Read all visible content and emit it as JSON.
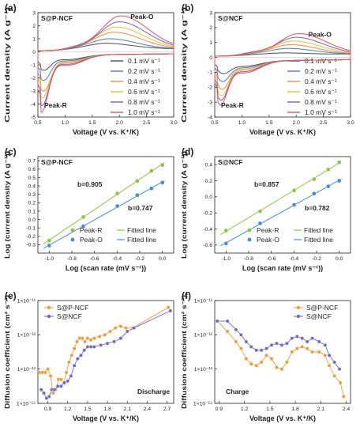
{
  "chart_data": [
    {
      "panel": "(a)",
      "type": "line",
      "title": "S@P-NCF",
      "xlabel": "Voltage (V vs. K⁺/K)",
      "ylabel": "Current density (A g⁻¹)",
      "xlim": [
        0.5,
        3.0
      ],
      "ylim": [
        -5,
        3
      ],
      "xticks": [
        "0.5",
        "1.0",
        "1.5",
        "2.0",
        "2.5",
        "3.0"
      ],
      "yticks": [
        "-5",
        "-4",
        "-3",
        "-2",
        "-1",
        "0",
        "1",
        "2",
        "3"
      ],
      "annotations": [
        "Peak-O",
        "Peak-R"
      ],
      "legend_position": "right",
      "series": [
        {
          "name": "0.1 mV s⁻¹",
          "color": "#4d4d4d",
          "peak_o": [
            1.76,
            0.65
          ],
          "peak_r": [
            0.6,
            -1.25
          ]
        },
        {
          "name": "0.2 mV s⁻¹",
          "color": "#3f7fc4",
          "peak_o": [
            1.82,
            1.0
          ],
          "peak_r": [
            0.6,
            -2.0
          ]
        },
        {
          "name": "0.4 mV s⁻¹",
          "color": "#f08a3c",
          "peak_o": [
            1.9,
            1.5
          ],
          "peak_r": [
            0.6,
            -2.8
          ]
        },
        {
          "name": "0.6 mV s⁻¹",
          "color": "#f0c020",
          "peak_o": [
            1.95,
            1.9
          ],
          "peak_r": [
            0.58,
            -3.3
          ]
        },
        {
          "name": "0.8 mV s⁻¹",
          "color": "#7a5cc8",
          "peak_o": [
            2.0,
            2.3
          ],
          "peak_r": [
            0.57,
            -3.9
          ]
        },
        {
          "name": "1.0 mV s⁻¹",
          "color": "#e8505a",
          "peak_o": [
            2.03,
            2.75
          ],
          "peak_r": [
            0.56,
            -4.4
          ]
        }
      ]
    },
    {
      "panel": "(b)",
      "type": "line",
      "title": "S@NCF",
      "xlabel": "Voltage (V vs. K⁺/K)",
      "ylabel": "Current density (A g⁻¹)",
      "xlim": [
        0.5,
        3.0
      ],
      "ylim": [
        -4,
        3
      ],
      "xticks": [
        "0.5",
        "1.0",
        "1.5",
        "2.0",
        "2.5",
        "3.0"
      ],
      "yticks": [
        "-4",
        "-3",
        "-2",
        "-1",
        "0",
        "1",
        "2",
        "3"
      ],
      "annotations": [
        "Peak-O",
        "Peak-R"
      ],
      "legend_position": "right",
      "series": [
        {
          "name": "0.1 mV s⁻¹",
          "color": "#4d4d4d",
          "peak_o": [
            1.8,
            0.3
          ],
          "peak_r": [
            0.65,
            -0.9
          ]
        },
        {
          "name": "0.2 mV s⁻¹",
          "color": "#3f7fc4",
          "peak_o": [
            1.85,
            0.6
          ],
          "peak_r": [
            0.64,
            -1.4
          ]
        },
        {
          "name": "0.4 mV s⁻¹",
          "color": "#f08a3c",
          "peak_o": [
            1.9,
            0.85
          ],
          "peak_r": [
            0.63,
            -1.9
          ]
        },
        {
          "name": "0.6 mV s⁻¹",
          "color": "#f0c020",
          "peak_o": [
            1.95,
            1.1
          ],
          "peak_r": [
            0.62,
            -2.3
          ]
        },
        {
          "name": "0.8 mV s⁻¹",
          "color": "#7a5cc8",
          "peak_o": [
            2.0,
            1.35
          ],
          "peak_r": [
            0.61,
            -2.6
          ]
        },
        {
          "name": "1.0 mV s⁻¹",
          "color": "#e8505a",
          "peak_o": [
            2.05,
            1.6
          ],
          "peak_r": [
            0.6,
            -2.9
          ]
        }
      ]
    },
    {
      "panel": "(c)",
      "type": "scatter",
      "title": "S@P-NCF",
      "xlabel": "Log (scan rate (mV s⁻¹))",
      "ylabel": "Log (current density (A g⁻¹))",
      "xlim": [
        -1.1,
        0.1
      ],
      "ylim": [
        -0.4,
        0.75
      ],
      "xticks": [
        "-1.0",
        "-0.8",
        "-0.6",
        "-0.4",
        "-0.2",
        "0.0"
      ],
      "yticks": [
        "-0.3",
        "-0.2",
        "-0.1",
        "0.0",
        "0.1",
        "0.2",
        "0.3",
        "0.4",
        "0.5",
        "0.6",
        "0.7"
      ],
      "annotations": [
        "b=0.905",
        "b=0.747"
      ],
      "legend_position": "bottom-right",
      "legend": [
        "Peak-R",
        "Fitted line",
        "Peak-O",
        "Fitted line"
      ],
      "x": [
        -1.0,
        -0.699,
        -0.398,
        -0.222,
        -0.097,
        0.0
      ],
      "series": [
        {
          "name": "Peak-R",
          "color": "#8cc63f",
          "values": [
            -0.25,
            0.03,
            0.31,
            0.46,
            0.58,
            0.65
          ]
        },
        {
          "name": "Peak-O",
          "color": "#3f8fd8",
          "values": [
            -0.31,
            -0.08,
            0.16,
            0.29,
            0.37,
            0.44
          ]
        }
      ]
    },
    {
      "panel": "(d)",
      "type": "scatter",
      "title": "S@NCF",
      "xlabel": "Log (scan rate (mV s⁻¹))",
      "ylabel": "Log (current density (A g⁻¹))",
      "xlim": [
        -1.1,
        0.1
      ],
      "ylim": [
        -0.7,
        0.5
      ],
      "xticks": [
        "-1.0",
        "-0.8",
        "-0.6",
        "-0.4",
        "-0.2",
        "0.0"
      ],
      "yticks": [
        "-0.6",
        "-0.4",
        "-0.2",
        "0.0",
        "0.2",
        "0.4"
      ],
      "annotations": [
        "b=0.857",
        "b=0.782"
      ],
      "legend_position": "bottom-right",
      "legend": [
        "Peak-R",
        "Fitted line",
        "Peak-O",
        "Fitted line"
      ],
      "x": [
        -1.0,
        -0.699,
        -0.398,
        -0.222,
        -0.097,
        0.0
      ],
      "series": [
        {
          "name": "Peak-R",
          "color": "#8cc63f",
          "values": [
            -0.42,
            -0.18,
            0.08,
            0.22,
            0.34,
            0.43
          ]
        },
        {
          "name": "Peak-O",
          "color": "#3f8fd8",
          "values": [
            -0.58,
            -0.33,
            -0.1,
            0.04,
            0.13,
            0.2
          ]
        }
      ]
    },
    {
      "panel": "(e)",
      "type": "line",
      "title": "Discharge",
      "xlabel": "Voltage (V vs. K⁺/K)",
      "ylabel": "Diffusion coefficient (cm² s⁻¹)",
      "yscale": "log",
      "xlim": [
        0.75,
        2.8
      ],
      "ylim_exp": [
        -14,
        -11
      ],
      "xticks": [
        "0.9",
        "1.2",
        "1.5",
        "1.8",
        "2.1",
        "2.4",
        "2.7"
      ],
      "yticks": [
        "1×10⁻¹⁴",
        "1×10⁻¹³",
        "1×10⁻¹²",
        "1×10⁻¹¹"
      ],
      "legend_position": "top-left",
      "series": [
        {
          "name": "S@P-NCF",
          "color": "#f59a32",
          "x": [
            0.78,
            0.82,
            0.86,
            0.9,
            0.94,
            0.98,
            1.02,
            1.06,
            1.1,
            1.14,
            1.18,
            1.22,
            1.26,
            1.3,
            1.34,
            1.38,
            1.42,
            1.46,
            1.5,
            1.55,
            1.6,
            1.68,
            1.76,
            1.84,
            1.92,
            2.0,
            2.08,
            2.18,
            2.72
          ],
          "log10_values": [
            -13.1,
            -13.1,
            -13.1,
            -13.0,
            -13.2,
            -13.7,
            -13.6,
            -13.3,
            -13.3,
            -13.4,
            -13.1,
            -12.8,
            -12.6,
            -12.4,
            -12.2,
            -12.1,
            -12.1,
            -12.2,
            -12.1,
            -12.15,
            -12.1,
            -12.05,
            -12.0,
            -11.9,
            -11.8,
            -11.75,
            -11.8,
            -11.8,
            -11.2
          ]
        },
        {
          "name": "S@NCF",
          "color": "#6a6ad0",
          "x": [
            0.8,
            0.84,
            0.88,
            0.92,
            0.96,
            1.0,
            1.05,
            1.1,
            1.15,
            1.2,
            1.25,
            1.3,
            1.35,
            1.4,
            1.45,
            1.5,
            1.55,
            1.6,
            1.7,
            1.8,
            1.9,
            2.0,
            2.1,
            2.2,
            2.75
          ],
          "log10_values": [
            -13.6,
            -13.7,
            -13.85,
            -13.8,
            -13.6,
            -13.6,
            -13.5,
            -13.5,
            -13.4,
            -13.35,
            -13.2,
            -12.9,
            -12.7,
            -12.6,
            -12.45,
            -12.35,
            -12.35,
            -12.35,
            -12.3,
            -12.25,
            -12.2,
            -12.1,
            -11.9,
            -11.8,
            -11.3
          ]
        }
      ]
    },
    {
      "panel": "(f)",
      "type": "line",
      "title": "Charge",
      "xlabel": "Voltage (V vs. K⁺/K)",
      "ylabel": "Diffusion coefficient (cm² s⁻¹)",
      "yscale": "log",
      "xlim": [
        0.85,
        2.45
      ],
      "ylim_exp": [
        -14,
        -11
      ],
      "xticks": [
        "0.9",
        "1.2",
        "1.5",
        "1.8",
        "2.1",
        "2.4"
      ],
      "yticks": [
        "1×10⁻¹⁴",
        "1×10⁻¹³",
        "1×10⁻¹²",
        "1×10⁻¹¹"
      ],
      "legend_position": "top-right",
      "series": [
        {
          "name": "S@P-NCF",
          "color": "#f59a32",
          "x": [
            0.88,
            1.0,
            1.1,
            1.16,
            1.22,
            1.28,
            1.34,
            1.4,
            1.46,
            1.52,
            1.58,
            1.64,
            1.7,
            1.76,
            1.82,
            1.88,
            1.94,
            2.0,
            2.08,
            2.15,
            2.2,
            2.26,
            2.33,
            2.37
          ],
          "log10_values": [
            -11.6,
            -11.9,
            -12.2,
            -12.4,
            -12.7,
            -12.85,
            -12.9,
            -12.8,
            -12.6,
            -12.7,
            -12.95,
            -13.0,
            -12.8,
            -12.5,
            -12.4,
            -12.35,
            -12.4,
            -12.5,
            -12.5,
            -12.6,
            -12.9,
            -13.2,
            -13.4,
            -13.8
          ]
        },
        {
          "name": "S@NCF",
          "color": "#6a6ad0",
          "x": [
            0.88,
            1.0,
            1.1,
            1.16,
            1.22,
            1.28,
            1.34,
            1.4,
            1.46,
            1.52,
            1.58,
            1.64,
            1.7,
            1.76,
            1.82,
            1.88,
            1.94,
            2.0,
            2.08,
            2.15,
            2.2,
            2.26,
            2.32
          ],
          "log10_values": [
            -11.6,
            -11.6,
            -11.85,
            -12.0,
            -12.2,
            -12.35,
            -12.45,
            -12.45,
            -12.4,
            -12.3,
            -12.25,
            -12.3,
            -12.25,
            -12.1,
            -12.05,
            -12.1,
            -12.2,
            -12.1,
            -12.2,
            -12.3,
            -12.6,
            -12.8,
            -13.0
          ]
        }
      ]
    }
  ]
}
